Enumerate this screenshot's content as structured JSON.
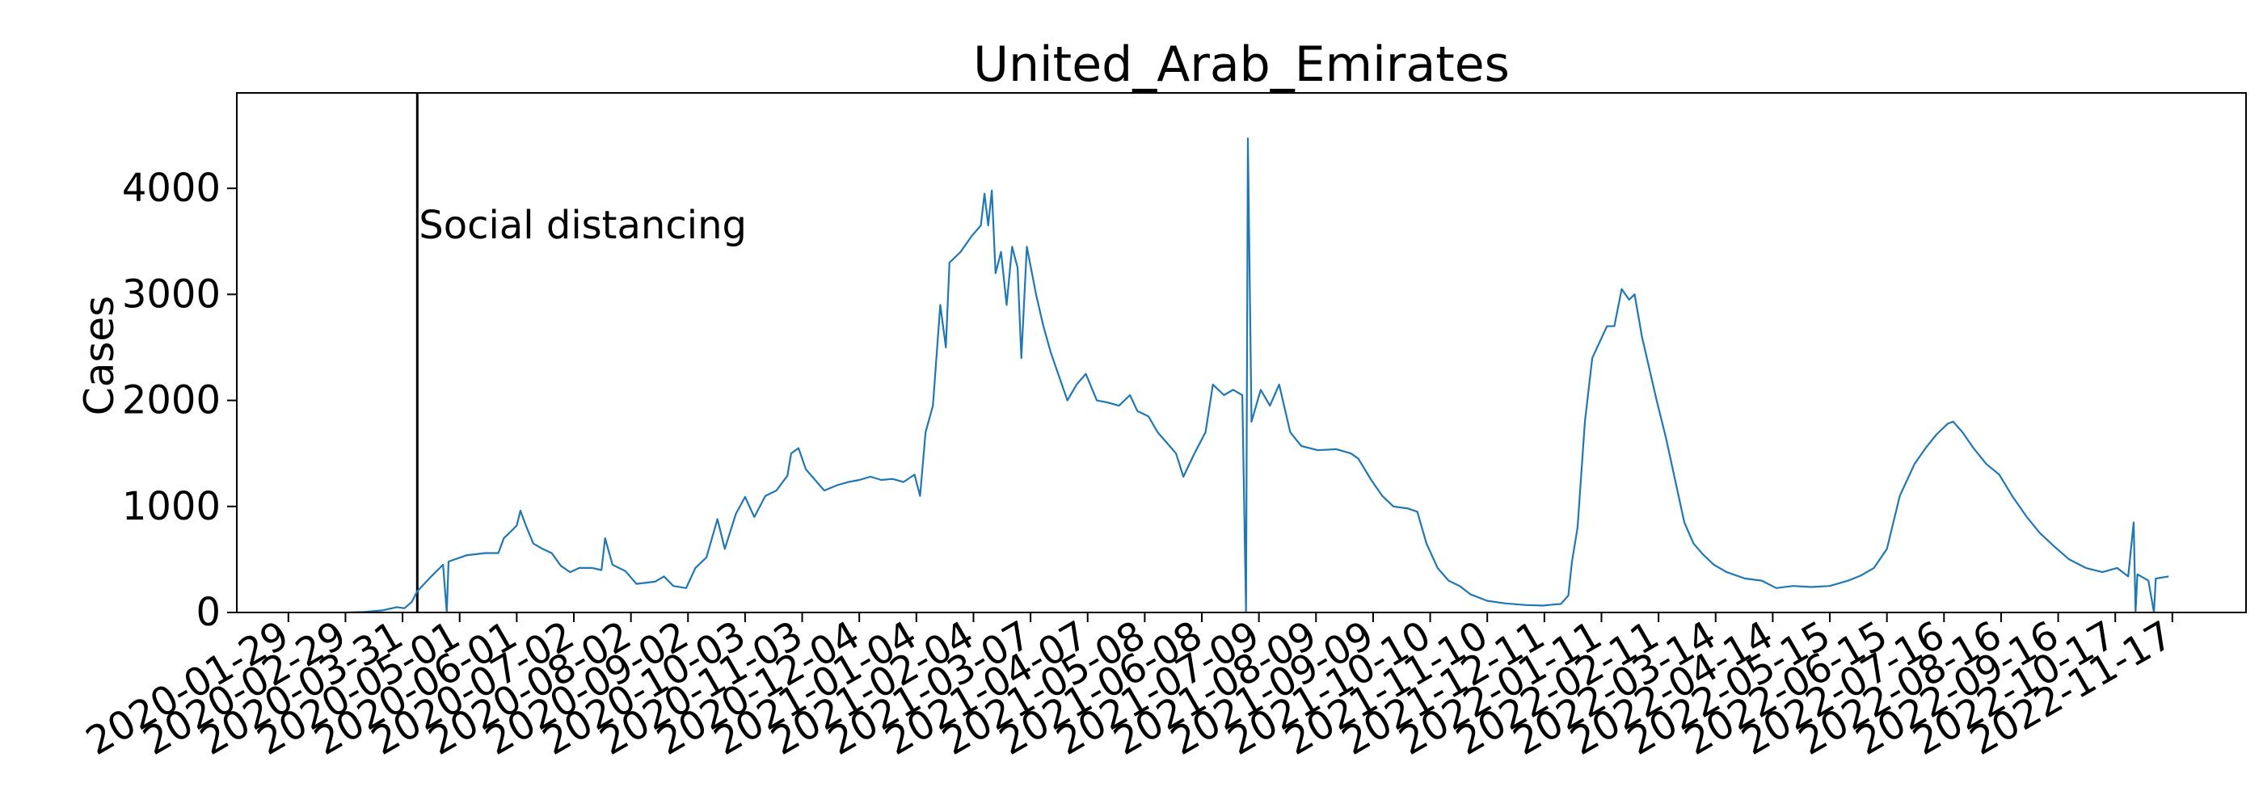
{
  "chart_data": {
    "type": "line",
    "title": "United_Arab_Emirates",
    "xlabel": "",
    "ylabel": "Cases",
    "ylim": [
      0,
      4900
    ],
    "xlim": [
      "2020-01-01",
      "2022-12-27"
    ],
    "grid": false,
    "y_ticks": [
      0,
      1000,
      2000,
      3000,
      4000
    ],
    "x_ticks": [
      "2020-01-29",
      "2020-02-29",
      "2020-03-31",
      "2020-05-01",
      "2020-06-01",
      "2020-07-02",
      "2020-08-02",
      "2020-09-02",
      "2020-10-03",
      "2020-11-03",
      "2020-12-04",
      "2021-01-04",
      "2021-02-04",
      "2021-03-07",
      "2021-04-07",
      "2021-05-08",
      "2021-06-08",
      "2021-07-09",
      "2021-08-09",
      "2021-09-09",
      "2021-10-10",
      "2021-11-10",
      "2021-12-11",
      "2022-01-11",
      "2022-02-11",
      "2022-03-14",
      "2022-04-14",
      "2022-05-15",
      "2022-06-15",
      "2022-07-16",
      "2022-08-16",
      "2022-09-16",
      "2022-10-17",
      "2022-11-17"
    ],
    "annotations": [
      {
        "date": "2020-04-08",
        "text": "Social distancing",
        "y": 3650
      }
    ],
    "series": [
      {
        "color": "#1f77b4",
        "points": [
          [
            "2020-03-01",
            0
          ],
          [
            "2020-03-10",
            5
          ],
          [
            "2020-03-20",
            20
          ],
          [
            "2020-03-28",
            50
          ],
          [
            "2020-04-01",
            40
          ],
          [
            "2020-04-05",
            100
          ],
          [
            "2020-04-08",
            200
          ],
          [
            "2020-04-15",
            330
          ],
          [
            "2020-04-22",
            450
          ],
          [
            "2020-04-24",
            0
          ],
          [
            "2020-04-25",
            480
          ],
          [
            "2020-05-05",
            540
          ],
          [
            "2020-05-15",
            560
          ],
          [
            "2020-05-22",
            560
          ],
          [
            "2020-05-25",
            700
          ],
          [
            "2020-05-28",
            750
          ],
          [
            "2020-06-01",
            820
          ],
          [
            "2020-06-03",
            960
          ],
          [
            "2020-06-06",
            820
          ],
          [
            "2020-06-10",
            650
          ],
          [
            "2020-06-15",
            600
          ],
          [
            "2020-06-20",
            560
          ],
          [
            "2020-06-25",
            440
          ],
          [
            "2020-06-30",
            380
          ],
          [
            "2020-07-05",
            420
          ],
          [
            "2020-07-12",
            420
          ],
          [
            "2020-07-17",
            400
          ],
          [
            "2020-07-19",
            700
          ],
          [
            "2020-07-23",
            450
          ],
          [
            "2020-07-30",
            390
          ],
          [
            "2020-08-05",
            270
          ],
          [
            "2020-08-15",
            290
          ],
          [
            "2020-08-20",
            340
          ],
          [
            "2020-08-25",
            250
          ],
          [
            "2020-09-01",
            230
          ],
          [
            "2020-09-06",
            420
          ],
          [
            "2020-09-12",
            520
          ],
          [
            "2020-09-18",
            880
          ],
          [
            "2020-09-22",
            600
          ],
          [
            "2020-09-28",
            930
          ],
          [
            "2020-10-03",
            1090
          ],
          [
            "2020-10-08",
            900
          ],
          [
            "2020-10-14",
            1100
          ],
          [
            "2020-10-20",
            1150
          ],
          [
            "2020-10-26",
            1290
          ],
          [
            "2020-10-28",
            1500
          ],
          [
            "2020-11-01",
            1550
          ],
          [
            "2020-11-05",
            1350
          ],
          [
            "2020-11-10",
            1250
          ],
          [
            "2020-11-15",
            1150
          ],
          [
            "2020-11-22",
            1200
          ],
          [
            "2020-11-28",
            1230
          ],
          [
            "2020-12-04",
            1250
          ],
          [
            "2020-12-10",
            1280
          ],
          [
            "2020-12-16",
            1250
          ],
          [
            "2020-12-22",
            1260
          ],
          [
            "2020-12-28",
            1230
          ],
          [
            "2021-01-03",
            1300
          ],
          [
            "2021-01-06",
            1100
          ],
          [
            "2021-01-09",
            1700
          ],
          [
            "2021-01-13",
            1950
          ],
          [
            "2021-01-17",
            2900
          ],
          [
            "2021-01-20",
            2500
          ],
          [
            "2021-01-22",
            3300
          ],
          [
            "2021-01-28",
            3400
          ],
          [
            "2021-02-03",
            3550
          ],
          [
            "2021-02-08",
            3650
          ],
          [
            "2021-02-10",
            3950
          ],
          [
            "2021-02-12",
            3650
          ],
          [
            "2021-02-14",
            3980
          ],
          [
            "2021-02-16",
            3200
          ],
          [
            "2021-02-19",
            3400
          ],
          [
            "2021-02-22",
            2900
          ],
          [
            "2021-02-25",
            3450
          ],
          [
            "2021-02-28",
            3250
          ],
          [
            "2021-03-02",
            2400
          ],
          [
            "2021-03-05",
            3450
          ],
          [
            "2021-03-10",
            3000
          ],
          [
            "2021-03-14",
            2700
          ],
          [
            "2021-03-18",
            2450
          ],
          [
            "2021-03-22",
            2250
          ],
          [
            "2021-03-27",
            2000
          ],
          [
            "2021-04-01",
            2150
          ],
          [
            "2021-04-06",
            2250
          ],
          [
            "2021-04-12",
            2000
          ],
          [
            "2021-04-18",
            1980
          ],
          [
            "2021-04-24",
            1950
          ],
          [
            "2021-04-30",
            2050
          ],
          [
            "2021-05-04",
            1900
          ],
          [
            "2021-05-10",
            1850
          ],
          [
            "2021-05-15",
            1700
          ],
          [
            "2021-05-20",
            1600
          ],
          [
            "2021-05-25",
            1500
          ],
          [
            "2021-05-29",
            1280
          ],
          [
            "2021-06-04",
            1500
          ],
          [
            "2021-06-10",
            1700
          ],
          [
            "2021-06-14",
            2150
          ],
          [
            "2021-06-20",
            2050
          ],
          [
            "2021-06-25",
            2100
          ],
          [
            "2021-06-30",
            2050
          ],
          [
            "2021-07-02",
            0
          ],
          [
            "2021-07-03",
            4470
          ],
          [
            "2021-07-05",
            1800
          ],
          [
            "2021-07-10",
            2100
          ],
          [
            "2021-07-15",
            1950
          ],
          [
            "2021-07-20",
            2150
          ],
          [
            "2021-07-26",
            1700
          ],
          [
            "2021-08-01",
            1570
          ],
          [
            "2021-08-10",
            1530
          ],
          [
            "2021-08-20",
            1540
          ],
          [
            "2021-08-28",
            1500
          ],
          [
            "2021-09-01",
            1450
          ],
          [
            "2021-09-08",
            1250
          ],
          [
            "2021-09-14",
            1100
          ],
          [
            "2021-09-20",
            1000
          ],
          [
            "2021-09-28",
            980
          ],
          [
            "2021-10-03",
            950
          ],
          [
            "2021-10-08",
            650
          ],
          [
            "2021-10-14",
            420
          ],
          [
            "2021-10-20",
            300
          ],
          [
            "2021-10-26",
            250
          ],
          [
            "2021-11-01",
            170
          ],
          [
            "2021-11-10",
            110
          ],
          [
            "2021-11-20",
            85
          ],
          [
            "2021-12-01",
            70
          ],
          [
            "2021-12-10",
            65
          ],
          [
            "2021-12-16",
            75
          ],
          [
            "2021-12-20",
            80
          ],
          [
            "2021-12-24",
            160
          ],
          [
            "2021-12-26",
            480
          ],
          [
            "2021-12-29",
            800
          ],
          [
            "2022-01-02",
            1800
          ],
          [
            "2022-01-06",
            2400
          ],
          [
            "2022-01-10",
            2550
          ],
          [
            "2022-01-14",
            2700
          ],
          [
            "2022-01-18",
            2700
          ],
          [
            "2022-01-22",
            3050
          ],
          [
            "2022-01-26",
            2950
          ],
          [
            "2022-01-29",
            3000
          ],
          [
            "2022-02-02",
            2600
          ],
          [
            "2022-02-06",
            2300
          ],
          [
            "2022-02-10",
            2000
          ],
          [
            "2022-02-15",
            1650
          ],
          [
            "2022-02-20",
            1250
          ],
          [
            "2022-02-25",
            850
          ],
          [
            "2022-03-02",
            650
          ],
          [
            "2022-03-07",
            550
          ],
          [
            "2022-03-13",
            450
          ],
          [
            "2022-03-20",
            380
          ],
          [
            "2022-03-30",
            320
          ],
          [
            "2022-04-08",
            300
          ],
          [
            "2022-04-16",
            230
          ],
          [
            "2022-04-25",
            250
          ],
          [
            "2022-05-05",
            240
          ],
          [
            "2022-05-15",
            250
          ],
          [
            "2022-05-25",
            300
          ],
          [
            "2022-06-01",
            350
          ],
          [
            "2022-06-08",
            420
          ],
          [
            "2022-06-15",
            600
          ],
          [
            "2022-06-22",
            1100
          ],
          [
            "2022-06-30",
            1400
          ],
          [
            "2022-07-06",
            1550
          ],
          [
            "2022-07-12",
            1680
          ],
          [
            "2022-07-18",
            1780
          ],
          [
            "2022-07-21",
            1800
          ],
          [
            "2022-07-26",
            1700
          ],
          [
            "2022-08-01",
            1550
          ],
          [
            "2022-08-08",
            1400
          ],
          [
            "2022-08-15",
            1300
          ],
          [
            "2022-08-22",
            1100
          ],
          [
            "2022-08-30",
            900
          ],
          [
            "2022-09-06",
            750
          ],
          [
            "2022-09-14",
            620
          ],
          [
            "2022-09-22",
            500
          ],
          [
            "2022-10-01",
            420
          ],
          [
            "2022-10-10",
            380
          ],
          [
            "2022-10-18",
            420
          ],
          [
            "2022-10-24",
            340
          ],
          [
            "2022-10-27",
            850
          ],
          [
            "2022-10-28",
            0
          ],
          [
            "2022-10-29",
            360
          ],
          [
            "2022-11-04",
            300
          ],
          [
            "2022-11-07",
            0
          ],
          [
            "2022-11-08",
            320
          ],
          [
            "2022-11-15",
            340
          ]
        ]
      }
    ]
  }
}
